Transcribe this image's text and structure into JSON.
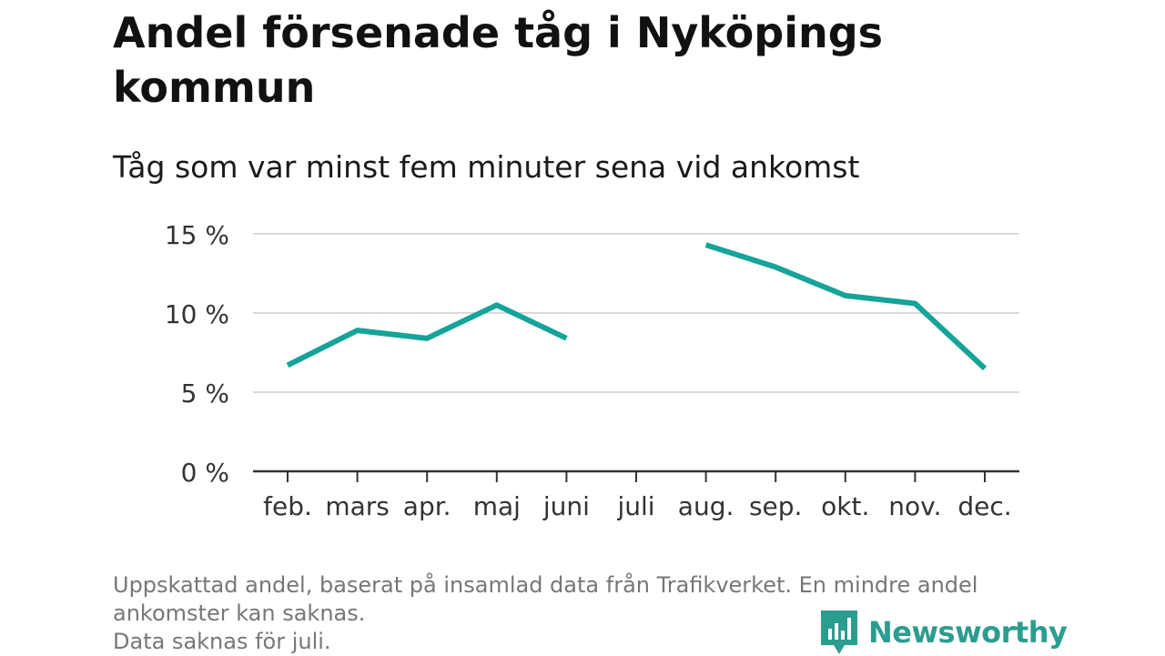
{
  "title": "Andel försenade tåg i Nyköpings kommun",
  "subtitle": "Tåg som var minst fem minuter sena vid ankomst",
  "chart_data": {
    "type": "line",
    "categories": [
      "feb.",
      "mars",
      "apr.",
      "maj",
      "juni",
      "juli",
      "aug.",
      "sep.",
      "okt.",
      "nov.",
      "dec."
    ],
    "series": [
      {
        "values": [
          6.7,
          8.9,
          8.4,
          10.5,
          8.4,
          null,
          14.3,
          12.9,
          11.1,
          10.6,
          6.5
        ]
      }
    ],
    "ylim": [
      0,
      15
    ],
    "yticks": [
      0,
      5,
      10,
      15
    ],
    "ytick_labels": [
      "0 %",
      "5 %",
      "10 %",
      "15 %"
    ],
    "grid": true,
    "line_color": "#15a39a"
  },
  "footer": {
    "line1": "Uppskattad andel, baserat på insamlad data från Trafikverket. En mindre andel",
    "line2": "ankomster kan saknas.",
    "line3": "Data saknas för juli."
  },
  "brand": {
    "name": "Newsworthy",
    "icon": "bar-chart-logo-icon",
    "color": "#2b9d8f"
  }
}
